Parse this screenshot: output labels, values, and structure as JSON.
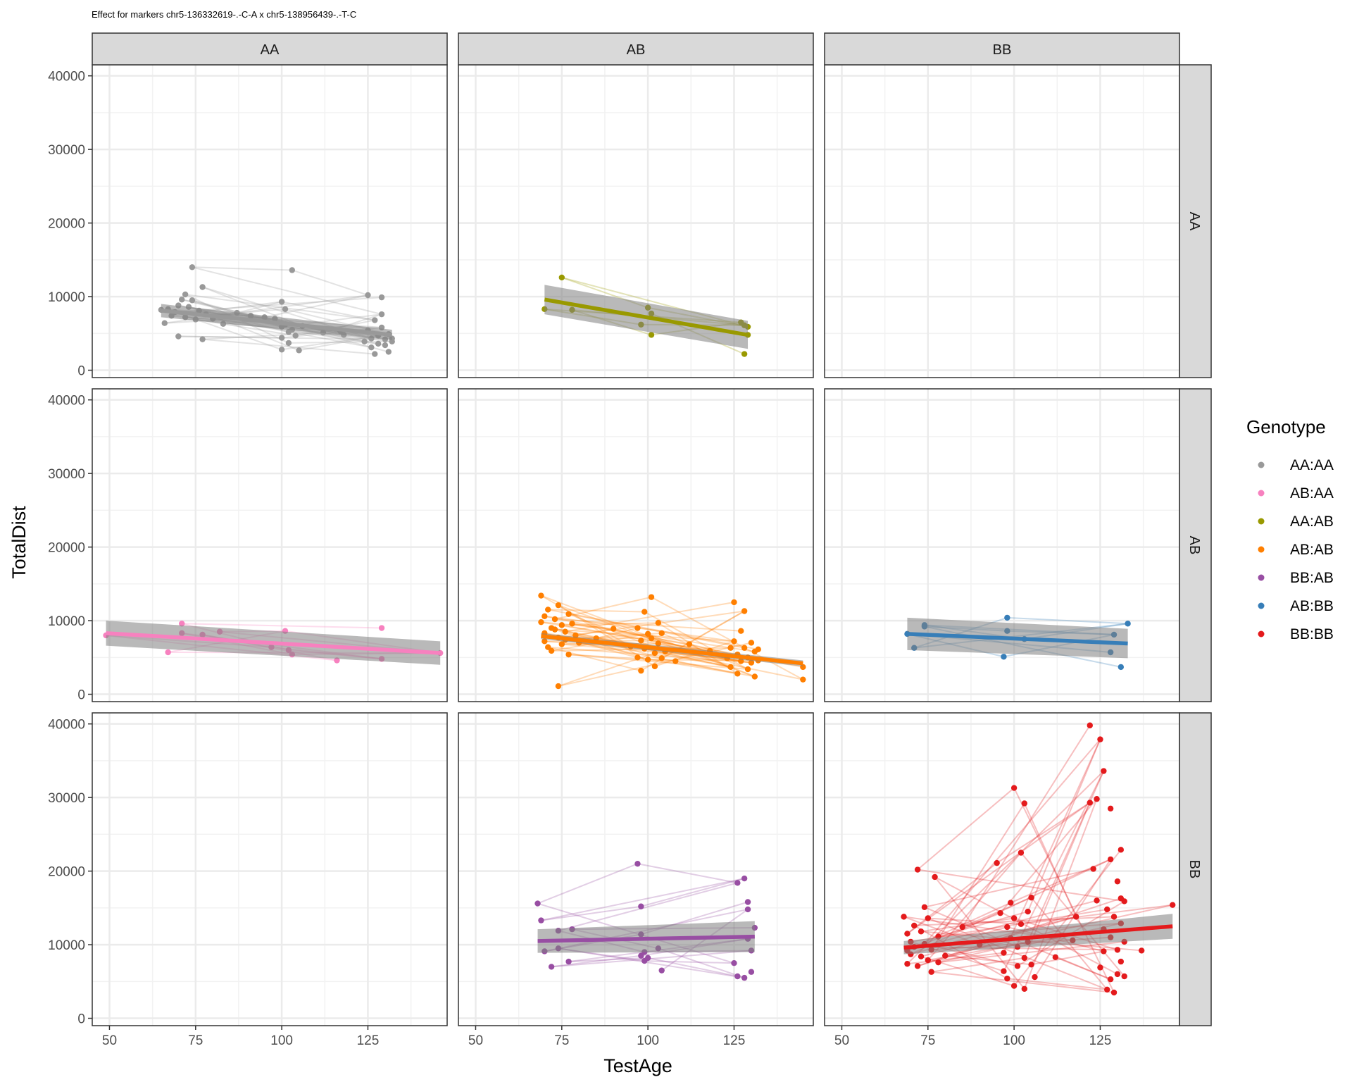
{
  "chart_data": {
    "type": "scatter",
    "title": "Effect for markers chr5-136332619-.-C-A x chr5-138956439-.-T-C",
    "xlabel": "TestAge",
    "ylabel": "TotalDist",
    "xlim": [
      45,
      148
    ],
    "ylim": [
      -1000,
      41500
    ],
    "x_ticks": [
      50,
      75,
      100,
      125
    ],
    "y_ticks": [
      0,
      10000,
      20000,
      30000,
      40000
    ],
    "col_facets": [
      "AA",
      "AB",
      "BB"
    ],
    "row_facets": [
      "AA",
      "AB",
      "BB"
    ],
    "legend": {
      "title": "Genotype",
      "position": "right",
      "items": [
        {
          "label": "AA:AA",
          "color": "#999999"
        },
        {
          "label": "AB:AA",
          "color": "#f781bf"
        },
        {
          "label": "AA:AB",
          "color": "#999900"
        },
        {
          "label": "AB:AB",
          "color": "#ff7f00"
        },
        {
          "label": "BB:AB",
          "color": "#984ea3"
        },
        {
          "label": "AB:BB",
          "color": "#377eb8"
        },
        {
          "label": "BB:BB",
          "color": "#e41a1c"
        }
      ]
    },
    "series": [
      {
        "name": "AA:AA",
        "row": 0,
        "col": 0,
        "color": "#999999",
        "points": [
          [
            65,
            8200
          ],
          [
            66,
            6400
          ],
          [
            67,
            8300
          ],
          [
            68,
            7400
          ],
          [
            69,
            7900
          ],
          [
            70,
            4600
          ],
          [
            70,
            8800
          ],
          [
            71,
            9600
          ],
          [
            72,
            7200
          ],
          [
            72,
            10300
          ],
          [
            73,
            8600
          ],
          [
            74,
            14000
          ],
          [
            74,
            9500
          ],
          [
            75,
            6900
          ],
          [
            76,
            8100
          ],
          [
            77,
            11300
          ],
          [
            77,
            4200
          ],
          [
            78,
            7600
          ],
          [
            80,
            7000
          ],
          [
            83,
            6300
          ],
          [
            87,
            7800
          ],
          [
            91,
            7400
          ],
          [
            95,
            7200
          ],
          [
            98,
            7000
          ],
          [
            100,
            9300
          ],
          [
            100,
            2800
          ],
          [
            100,
            4400
          ],
          [
            100,
            5900
          ],
          [
            101,
            6200
          ],
          [
            101,
            8300
          ],
          [
            102,
            3700
          ],
          [
            102,
            5200
          ],
          [
            103,
            13600
          ],
          [
            103,
            5500
          ],
          [
            104,
            4700
          ],
          [
            105,
            2700
          ],
          [
            106,
            6000
          ],
          [
            112,
            5100
          ],
          [
            117,
            5300
          ],
          [
            118,
            4800
          ],
          [
            124,
            3900
          ],
          [
            125,
            10200
          ],
          [
            125,
            5400
          ],
          [
            126,
            4300
          ],
          [
            126,
            3100
          ],
          [
            127,
            6800
          ],
          [
            127,
            2200
          ],
          [
            128,
            4700
          ],
          [
            128,
            3600
          ],
          [
            129,
            5800
          ],
          [
            129,
            9900
          ],
          [
            129,
            7600
          ],
          [
            130,
            3400
          ],
          [
            130,
            4200
          ],
          [
            131,
            2500
          ],
          [
            131,
            4900
          ],
          [
            132,
            4300
          ],
          [
            132,
            3900
          ]
        ],
        "trend": {
          "x": [
            65,
            132
          ],
          "y": [
            8100,
            4800
          ],
          "ci": [
            900,
            700
          ]
        }
      },
      {
        "name": "AA:AB",
        "row": 0,
        "col": 1,
        "color": "#999900",
        "points": [
          [
            70,
            8300
          ],
          [
            75,
            12600
          ],
          [
            78,
            8200
          ],
          [
            98,
            6200
          ],
          [
            100,
            8500
          ],
          [
            101,
            4800
          ],
          [
            101,
            7700
          ],
          [
            127,
            6500
          ],
          [
            128,
            6100
          ],
          [
            128,
            2200
          ],
          [
            129,
            5900
          ],
          [
            129,
            4800
          ]
        ],
        "trend": {
          "x": [
            70,
            129
          ],
          "y": [
            9600,
            4800
          ],
          "ci": [
            2000,
            1900
          ]
        }
      },
      {
        "name": "AB:AA",
        "row": 1,
        "col": 0,
        "color": "#f781bf",
        "points": [
          [
            49,
            8000
          ],
          [
            67,
            5700
          ],
          [
            71,
            9600
          ],
          [
            71,
            8300
          ],
          [
            77,
            8100
          ],
          [
            82,
            8500
          ],
          [
            97,
            6400
          ],
          [
            101,
            8600
          ],
          [
            102,
            6000
          ],
          [
            103,
            5400
          ],
          [
            116,
            4600
          ],
          [
            129,
            4800
          ],
          [
            129,
            9000
          ],
          [
            146,
            5600
          ]
        ],
        "trend": {
          "x": [
            49,
            146
          ],
          "y": [
            8300,
            5600
          ],
          "ci": [
            1700,
            1600
          ]
        }
      },
      {
        "name": "AB:AB",
        "row": 1,
        "col": 1,
        "color": "#ff7f00",
        "points": [
          [
            69,
            9800
          ],
          [
            69,
            13400
          ],
          [
            70,
            10600
          ],
          [
            70,
            8300
          ],
          [
            70,
            7200
          ],
          [
            71,
            6400
          ],
          [
            71,
            11500
          ],
          [
            72,
            9000
          ],
          [
            72,
            5900
          ],
          [
            73,
            8800
          ],
          [
            73,
            10200
          ],
          [
            74,
            7700
          ],
          [
            74,
            1100
          ],
          [
            74,
            12100
          ],
          [
            75,
            9400
          ],
          [
            75,
            6800
          ],
          [
            76,
            8500
          ],
          [
            76,
            7400
          ],
          [
            77,
            10900
          ],
          [
            77,
            5400
          ],
          [
            78,
            9600
          ],
          [
            79,
            8000
          ],
          [
            80,
            7000
          ],
          [
            85,
            7600
          ],
          [
            90,
            8900
          ],
          [
            95,
            6500
          ],
          [
            97,
            9000
          ],
          [
            97,
            5000
          ],
          [
            98,
            7300
          ],
          [
            98,
            3200
          ],
          [
            99,
            11200
          ],
          [
            99,
            6200
          ],
          [
            100,
            8200
          ],
          [
            100,
            4700
          ],
          [
            101,
            13200
          ],
          [
            101,
            7600
          ],
          [
            102,
            5600
          ],
          [
            102,
            3800
          ],
          [
            103,
            9700
          ],
          [
            103,
            6900
          ],
          [
            104,
            4900
          ],
          [
            104,
            8300
          ],
          [
            105,
            5800
          ],
          [
            108,
            4500
          ],
          [
            112,
            6800
          ],
          [
            118,
            5900
          ],
          [
            123,
            4900
          ],
          [
            124,
            6300
          ],
          [
            124,
            3700
          ],
          [
            125,
            12500
          ],
          [
            125,
            7200
          ],
          [
            126,
            5400
          ],
          [
            126,
            2800
          ],
          [
            127,
            8600
          ],
          [
            127,
            4500
          ],
          [
            128,
            6300
          ],
          [
            128,
            11300
          ],
          [
            129,
            5000
          ],
          [
            129,
            3400
          ],
          [
            130,
            7000
          ],
          [
            130,
            4300
          ],
          [
            131,
            5800
          ],
          [
            131,
            2400
          ],
          [
            132,
            6100
          ],
          [
            132,
            4600
          ],
          [
            145,
            3700
          ],
          [
            145,
            2000
          ]
        ],
        "trend": {
          "x": [
            69,
            145
          ],
          "y": [
            7900,
            4200
          ],
          "ci": [
            400,
            400
          ]
        }
      },
      {
        "name": "AB:BB",
        "row": 1,
        "col": 2,
        "color": "#377eb8",
        "points": [
          [
            69,
            8200
          ],
          [
            71,
            6300
          ],
          [
            74,
            9200
          ],
          [
            74,
            9400
          ],
          [
            97,
            5100
          ],
          [
            98,
            10400
          ],
          [
            98,
            8600
          ],
          [
            103,
            7500
          ],
          [
            128,
            5700
          ],
          [
            129,
            8100
          ],
          [
            131,
            3700
          ],
          [
            133,
            9600
          ]
        ],
        "trend": {
          "x": [
            69,
            133
          ],
          "y": [
            8200,
            6900
          ],
          "ci": [
            2200,
            2000
          ]
        }
      },
      {
        "name": "BB:AB",
        "row": 2,
        "col": 1,
        "color": "#984ea3",
        "points": [
          [
            68,
            15600
          ],
          [
            69,
            13300
          ],
          [
            70,
            9100
          ],
          [
            72,
            7000
          ],
          [
            74,
            11900
          ],
          [
            74,
            9500
          ],
          [
            77,
            7700
          ],
          [
            78,
            12100
          ],
          [
            97,
            21000
          ],
          [
            98,
            15200
          ],
          [
            98,
            11400
          ],
          [
            98,
            8500
          ],
          [
            99,
            9000
          ],
          [
            99,
            7800
          ],
          [
            100,
            8200
          ],
          [
            103,
            9500
          ],
          [
            104,
            6500
          ],
          [
            125,
            7500
          ],
          [
            126,
            18400
          ],
          [
            126,
            5700
          ],
          [
            128,
            19000
          ],
          [
            128,
            5500
          ],
          [
            129,
            15800
          ],
          [
            129,
            14800
          ],
          [
            129,
            10800
          ],
          [
            130,
            6300
          ],
          [
            130,
            9200
          ],
          [
            131,
            12300
          ]
        ],
        "trend": {
          "x": [
            68,
            131
          ],
          "y": [
            10500,
            11100
          ],
          "ci": [
            1600,
            2100
          ]
        }
      },
      {
        "name": "BB:BB",
        "row": 2,
        "col": 2,
        "color": "#e41a1c",
        "points": [
          [
            68,
            13800
          ],
          [
            69,
            11500
          ],
          [
            69,
            9200
          ],
          [
            69,
            7400
          ],
          [
            70,
            10400
          ],
          [
            70,
            8700
          ],
          [
            71,
            12600
          ],
          [
            71,
            9700
          ],
          [
            72,
            7100
          ],
          [
            72,
            20200
          ],
          [
            73,
            11800
          ],
          [
            73,
            8400
          ],
          [
            74,
            15100
          ],
          [
            74,
            10100
          ],
          [
            75,
            7900
          ],
          [
            75,
            13600
          ],
          [
            76,
            9300
          ],
          [
            76,
            6300
          ],
          [
            77,
            19200
          ],
          [
            78,
            11100
          ],
          [
            78,
            7600
          ],
          [
            80,
            8500
          ],
          [
            85,
            12400
          ],
          [
            90,
            10000
          ],
          [
            95,
            21100
          ],
          [
            96,
            14300
          ],
          [
            97,
            8900
          ],
          [
            97,
            6400
          ],
          [
            98,
            12400
          ],
          [
            98,
            5400
          ],
          [
            99,
            15700
          ],
          [
            99,
            10900
          ],
          [
            100,
            31300
          ],
          [
            100,
            13600
          ],
          [
            100,
            4400
          ],
          [
            101,
            9700
          ],
          [
            101,
            7100
          ],
          [
            102,
            22500
          ],
          [
            102,
            12800
          ],
          [
            103,
            29200
          ],
          [
            103,
            8200
          ],
          [
            103,
            4000
          ],
          [
            104,
            14500
          ],
          [
            104,
            10400
          ],
          [
            105,
            7300
          ],
          [
            105,
            16400
          ],
          [
            106,
            5600
          ],
          [
            112,
            8300
          ],
          [
            117,
            10600
          ],
          [
            118,
            13800
          ],
          [
            122,
            39800
          ],
          [
            122,
            29300
          ],
          [
            123,
            20300
          ],
          [
            124,
            29800
          ],
          [
            124,
            16000
          ],
          [
            125,
            37900
          ],
          [
            125,
            6900
          ],
          [
            126,
            33600
          ],
          [
            126,
            12100
          ],
          [
            126,
            9100
          ],
          [
            127,
            14800
          ],
          [
            127,
            3900
          ],
          [
            128,
            28500
          ],
          [
            128,
            21600
          ],
          [
            128,
            11000
          ],
          [
            128,
            5300
          ],
          [
            129,
            13800
          ],
          [
            129,
            3500
          ],
          [
            130,
            18600
          ],
          [
            130,
            9300
          ],
          [
            130,
            6000
          ],
          [
            131,
            22900
          ],
          [
            131,
            16300
          ],
          [
            131,
            12900
          ],
          [
            131,
            7700
          ],
          [
            132,
            15900
          ],
          [
            132,
            10400
          ],
          [
            132,
            5700
          ],
          [
            137,
            9200
          ],
          [
            146,
            15400
          ]
        ],
        "trend": {
          "x": [
            68,
            146
          ],
          "y": [
            9600,
            12500
          ],
          "ci": [
            900,
            1700
          ]
        }
      }
    ]
  }
}
